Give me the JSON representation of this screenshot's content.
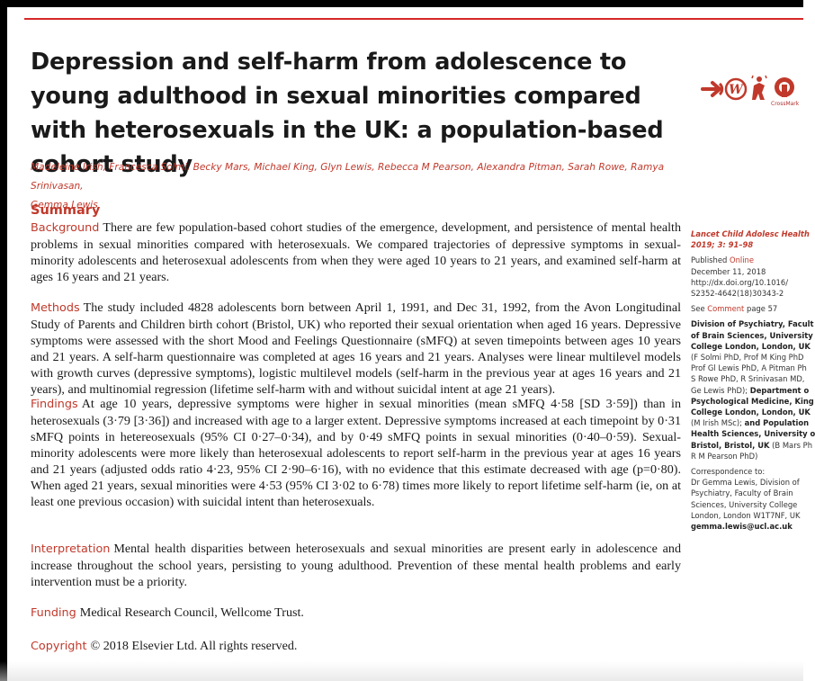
{
  "article": {
    "title": "Depression and self-harm from adolescence to young adulthood in sexual minorities compared with heterosexuals in the UK: a population-based cohort study",
    "authors_line1": "Madeleine Irish, Francesca Solmi, Becky Mars, Michael King, Glyn Lewis, Rebecca M Pearson, Alexandra Pitman, Sarah Rowe, Ramya Srinivasan,",
    "authors_line2": "Gemma Lewis",
    "summary_heading": "Summary",
    "background_label": "Background",
    "background_text": "There are few population-based cohort studies of the emergence, development, and persistence of mental health problems in sexual minorities compared with heterosexuals. We compared trajectories of depressive symptoms in sexual-minority adolescents and heterosexual adolescents from when they were aged 10 years to 21 years, and examined self-harm at ages 16 years and 21 years.",
    "methods_label": "Methods",
    "methods_text": "The study included 4828 adolescents born between April 1, 1991, and Dec 31, 1992, from the Avon Longitudinal Study of Parents and Children birth cohort (Bristol, UK) who reported their sexual orientation when aged 16 years. Depressive symptoms were assessed with the short Mood and Feelings Questionnaire (sMFQ) at seven timepoints between ages 10 years and 21 years. A self-harm questionnaire was completed at ages 16 years and 21 years. Analyses were linear multilevel models with growth curves (depressive symptoms), logistic multilevel models (self-harm in the previous year at ages 16 years and 21 years), and multinomial regression (lifetime self-harm with and without suicidal intent at age 21 years).",
    "findings_label": "Findings",
    "findings_text": "At age 10 years, depressive symptoms were higher in sexual minorities (mean sMFQ 4·58 [SD 3·59]) than in heterosexuals (3·79 [3·36]) and increased with age to a larger extent. Depressive symptoms increased at each timepoint by 0·31 sMFQ points in hetereosexuals (95% CI 0·27–0·34), and by 0·49 sMFQ points in sexual minorities (0·40–0·59). Sexual-minority adolescents were more likely than heterosexual adolescents to report self-harm in the previous year at ages 16 years and 21 years (adjusted odds ratio 4·23, 95% CI 2·90–6·16), with no evidence that this estimate decreased with age (p=0·80). When aged 21 years, sexual minorities were 4·53 (95% CI 3·02 to 6·78) times more likely to report lifetime self-harm (ie, on at least one previous occasion) with suicidal intent than heterosexuals.",
    "interpretation_label": "Interpretation",
    "interpretation_text": "Mental health disparities between heterosexuals and sexual minorities are present early in adolescence and increase throughout the school years, persisting to young adulthood. Prevention of these mental health problems and early intervention must be a priority.",
    "funding_label": "Funding",
    "funding_text": "Medical Research Council, Wellcome Trust.",
    "copyright_label": "Copyright",
    "copyright_text": "© 2018 Elsevier Ltd. All rights reserved."
  },
  "logos": {
    "crossmark_label": "CrossMark",
    "icon_names": [
      "open-access-arrow-icon",
      "author-w-icon",
      "reader-icon",
      "crossmark-icon"
    ],
    "accent_color": "#c0392b"
  },
  "sidebar": {
    "journal": "Lancet Child Adolesc Health",
    "citation": "2019; 3: 91–98",
    "published_prefix": "Published",
    "published_link": "Online",
    "published_date": "December 11, 2018",
    "doi_line1": "http://dx.doi.org/10.1016/",
    "doi_line2": "S2352-4642(18)30343-2",
    "see_prefix": "See",
    "see_link": "Comment",
    "see_suffix": "page 57",
    "affil_1": "Division of Psychiatry, Facult",
    "affil_2": "of Brain Sciences, University",
    "affil_3": "College London, London, UK",
    "affil_4": "(F Solmi PhD, Prof M King PhD",
    "affil_5": "Prof Gl Lewis PhD, A Pitman Ph",
    "affil_6": "S Rowe PhD, R Srinivasan MD,",
    "affil_7a": "Ge Lewis PhD);",
    "affil_7b": "Department o",
    "affil_8": "Psychological Medicine, King",
    "affil_9": "College London, London, UK",
    "affil_10a": "(M Irish MSc);",
    "affil_10b": "and Population",
    "affil_11": "Health Sciences, University o",
    "affil_12a": "Bristol, Bristol, UK",
    "affil_12b": "(B Mars Ph",
    "affil_13": "R M Pearson PhD)",
    "corr_label": "Correspondence to:",
    "corr_1": "Dr Gemma Lewis, Division of",
    "corr_2": "Psychiatry, Faculty of Brain",
    "corr_3": "Sciences, University College",
    "corr_4": "London, London W1T7NF, UK",
    "corr_email": "gemma.lewis@ucl.ac.uk"
  }
}
